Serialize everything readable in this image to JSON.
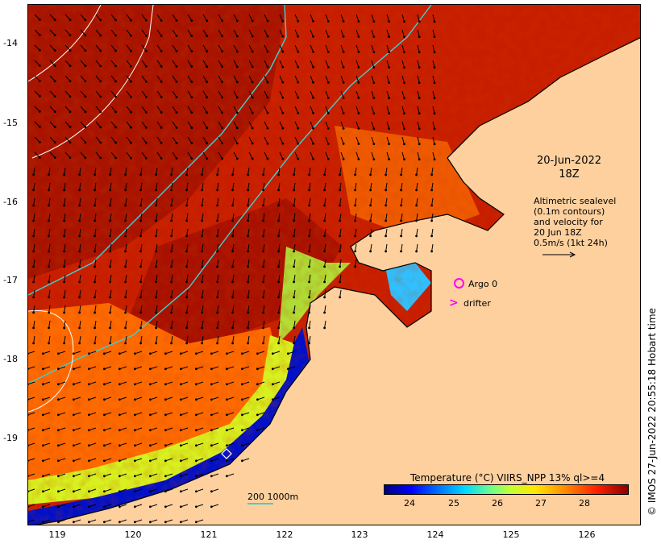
{
  "map": {
    "date_line1": "20-Jun-2022",
    "date_line2": "18Z",
    "altimetry_lines": [
      "Altimetric sealevel",
      "(0.1m contours)",
      "and velocity for",
      "20 Jun 18Z",
      "0.5m/s (1kt 24h)"
    ],
    "legend": {
      "argo": "Argo 0",
      "drifter": "drifter"
    },
    "colorbar": {
      "title": "Temperature (°C) VIIRS_NPP 13% ql>=4",
      "ticks": [
        "24",
        "25",
        "26",
        "27",
        "28"
      ]
    },
    "isobath_label": "200  1000m",
    "credit": "© IMOS 27-Jun-2022 20:55:18 Hobart time",
    "y_ticks": [
      "-14",
      "-15",
      "-16",
      "-17",
      "-18",
      "-19"
    ],
    "x_ticks": [
      "119",
      "120",
      "121",
      "122",
      "123",
      "124",
      "125",
      "126"
    ],
    "colors": {
      "land": "#fdd09e",
      "isobath": "#40d0d0",
      "marker": "#ff00ff"
    }
  }
}
